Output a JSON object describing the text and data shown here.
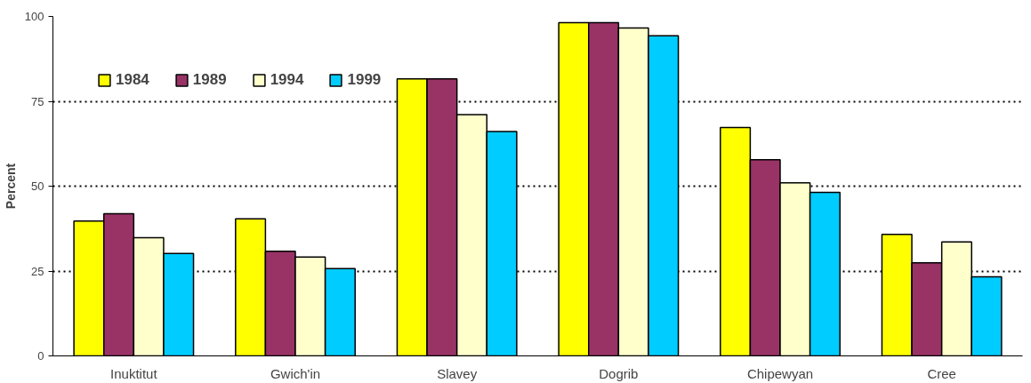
{
  "chart_data": {
    "type": "bar",
    "ylabel": "Percent",
    "categories": [
      "Inuktitut",
      "Gwich'in",
      "Slavey",
      "Dogrib",
      "Chipewyan",
      "Cree"
    ],
    "series": [
      {
        "name": "1984",
        "color": "#ffff00",
        "values": [
          39.7,
          40.4,
          81.6,
          98.2,
          67.3,
          35.8
        ]
      },
      {
        "name": "1989",
        "color": "#993366",
        "values": [
          41.9,
          30.8,
          81.6,
          98.2,
          57.8,
          27.4
        ]
      },
      {
        "name": "1994",
        "color": "#ffffcc",
        "values": [
          34.8,
          29.1,
          71.1,
          96.6,
          51.0,
          33.6
        ]
      },
      {
        "name": "1999",
        "color": "#00ccff",
        "values": [
          30.2,
          25.7,
          66.1,
          94.3,
          48.2,
          23.3
        ]
      }
    ],
    "ylim": [
      0,
      100
    ],
    "yticks": [
      0,
      25,
      50,
      75,
      100
    ],
    "grid": "y",
    "legend": "top left"
  }
}
